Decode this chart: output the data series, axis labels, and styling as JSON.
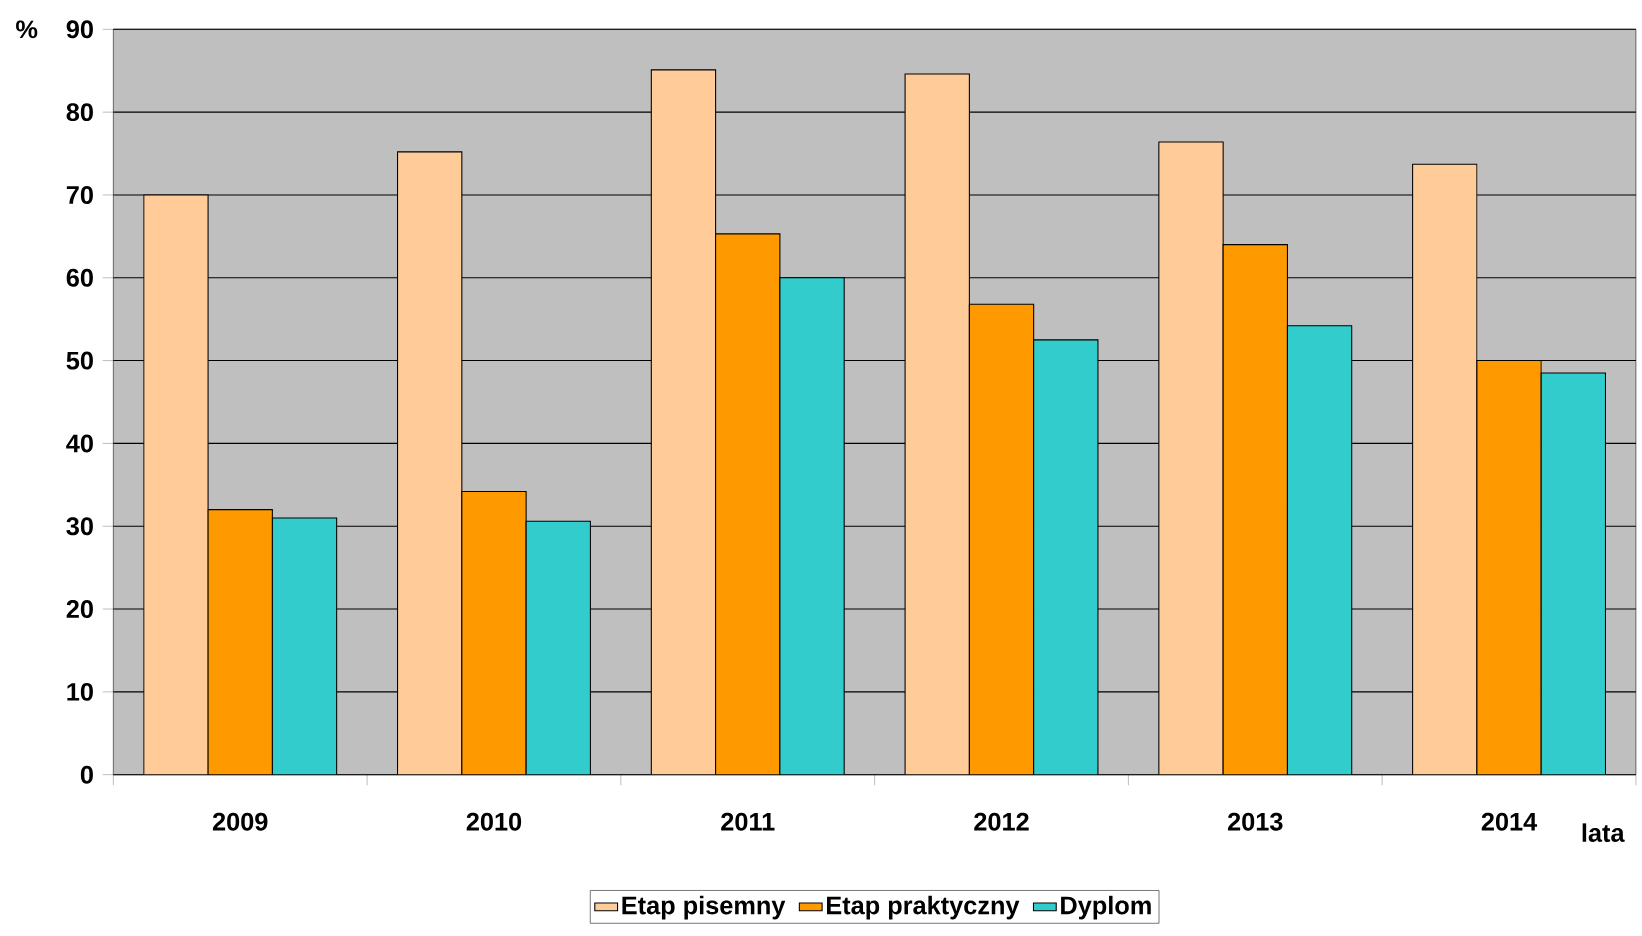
{
  "chart_data": {
    "type": "bar",
    "xlabel": "lata",
    "ylabel": "%",
    "categories": [
      "2009",
      "2010",
      "2011",
      "2012",
      "2013",
      "2014"
    ],
    "series": [
      {
        "name": "Etap pisemny",
        "color": "#ffcc99",
        "values": [
          70,
          75.2,
          85.1,
          84.6,
          76.4,
          73.7
        ]
      },
      {
        "name": "Etap praktyczny",
        "color": "#ff9900",
        "values": [
          32,
          34.2,
          65.3,
          56.8,
          64,
          50
        ]
      },
      {
        "name": "Dyplom",
        "color": "#33cccc",
        "values": [
          31,
          30.6,
          60,
          52.5,
          54.2,
          48.5
        ]
      }
    ],
    "ylim": [
      0,
      90
    ],
    "yticks": [
      0,
      10,
      20,
      30,
      40,
      50,
      60,
      70,
      80,
      90
    ],
    "grid": "y",
    "legend": "bottom"
  }
}
